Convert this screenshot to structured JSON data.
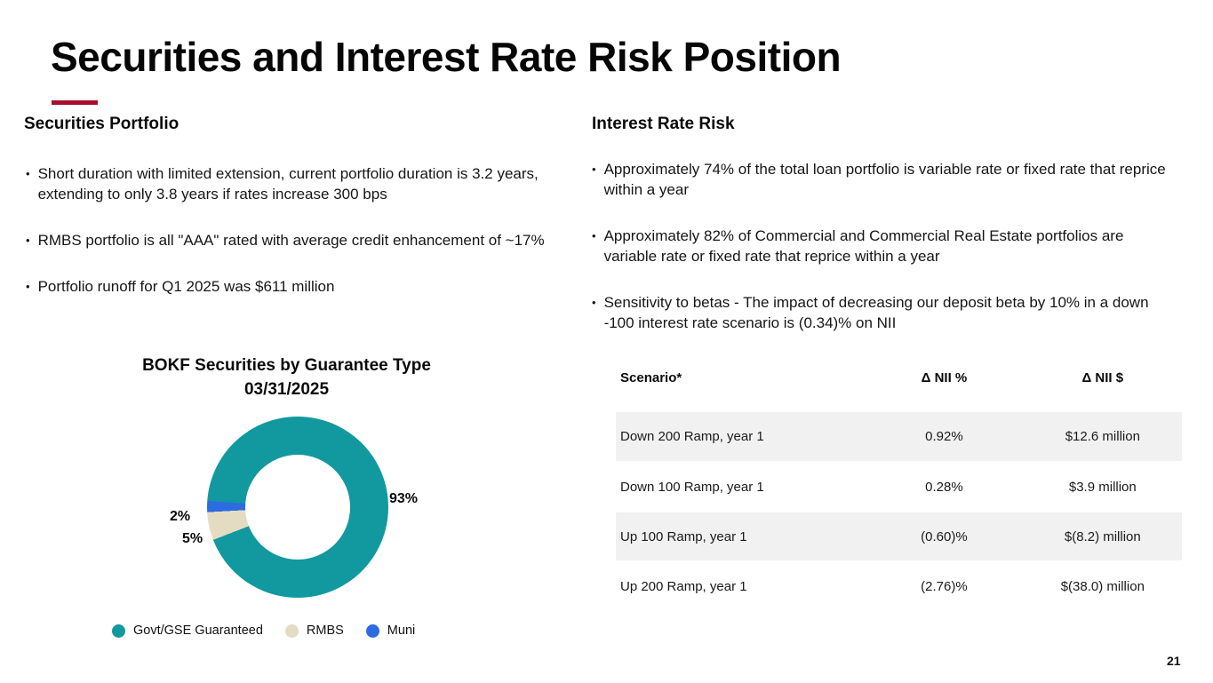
{
  "slide": {
    "title": "Securities and Interest Rate Risk Position",
    "page_number": "21",
    "accent_color": "#A80E2E"
  },
  "left": {
    "heading": "Securities Portfolio",
    "bullets": [
      "Short duration with limited extension, current portfolio duration is 3.2 years, extending to only 3.8 years if rates increase 300 bps",
      "RMBS portfolio is all \"AAA\" rated with average credit enhancement of  ~17%",
      "Portfolio runoff for Q1 2025 was $611 million"
    ]
  },
  "right": {
    "heading": "Interest Rate Risk",
    "bullets": [
      "Approximately 74% of the total loan portfolio is variable rate or fixed rate that reprice within a year",
      "Approximately 82% of Commercial and Commercial Real Estate portfolios are variable rate or fixed rate that reprice within a year",
      "Sensitivity to betas - The impact of decreasing our deposit beta by 10% in a down -100 interest rate scenario is (0.34)% on NII"
    ]
  },
  "chart_data": {
    "type": "pie",
    "donut": true,
    "title": "BOKF Securities by Guarantee Type",
    "subtitle": "03/31/2025",
    "categories": [
      "Govt/GSE Guaranteed",
      "RMBS",
      "Muni"
    ],
    "values": [
      93,
      5,
      2
    ],
    "labels": [
      "93%",
      "5%",
      "2%"
    ],
    "colors": [
      "#12999F",
      "#E3DCC3",
      "#2D6BE0"
    ],
    "start_angle_deg": 274,
    "legend_position": "bottom"
  },
  "table": {
    "headers": [
      "Scenario*",
      "Δ NII %",
      "Δ NII $"
    ],
    "rows": [
      [
        "Down 200 Ramp, year 1",
        "0.92%",
        "$12.6 million"
      ],
      [
        "Down 100 Ramp, year 1",
        "0.28%",
        "$3.9 million"
      ],
      [
        "Up 100 Ramp, year 1",
        "(0.60)%",
        "$(8.2) million"
      ],
      [
        "Up 200 Ramp, year 1",
        "(2.76)%",
        "$(38.0) million"
      ]
    ],
    "stripe_color": "#F1F1F1"
  }
}
